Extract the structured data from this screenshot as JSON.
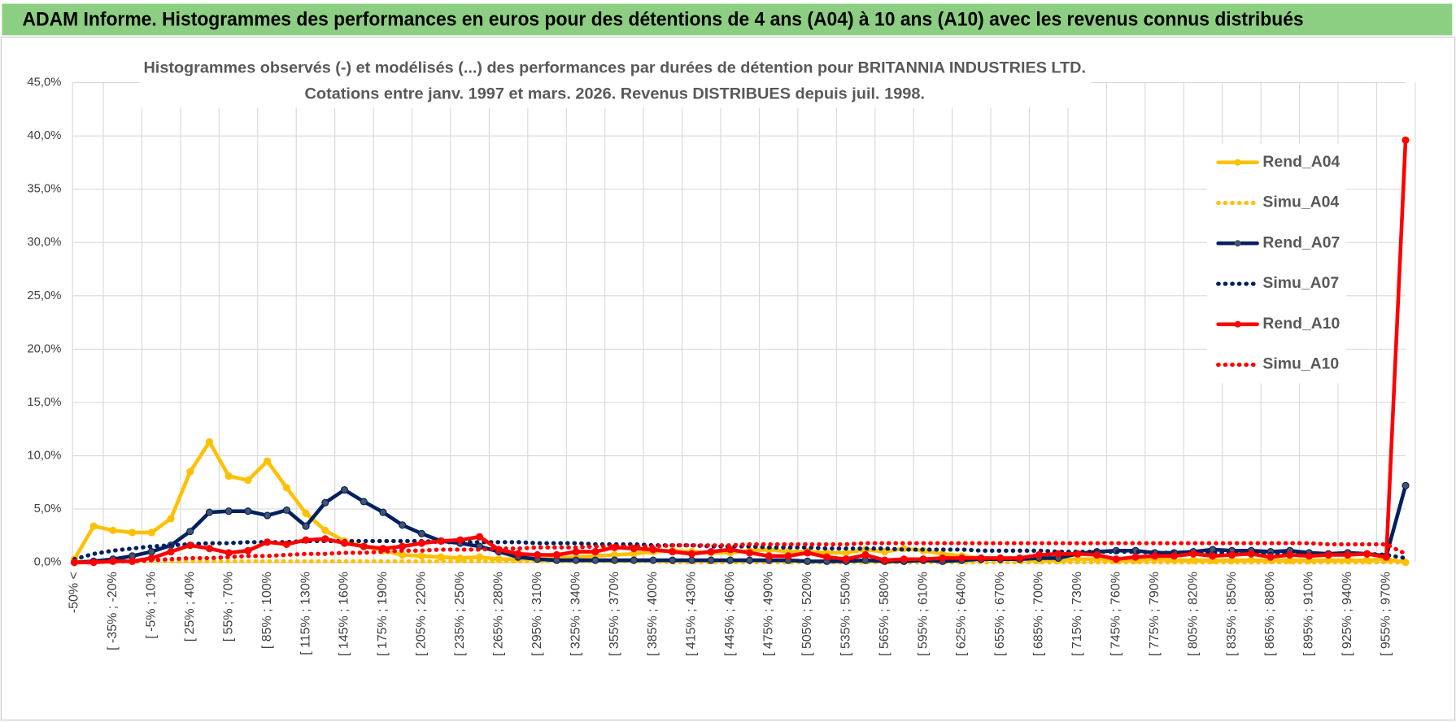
{
  "header": "ADAM Informe. Histogrammes des performances en euros pour des détentions de 4 ans (A04) à 10 ans (A10) avec les revenus connus distribués",
  "chart_data": {
    "type": "line",
    "title": "Histogrammes observés (-) et modélisés (...) des performances par durées de détention pour BRITANNIA  INDUSTRIES LTD.",
    "subtitle": "Cotations entre janv. 1997 et mars. 2026. Revenus DISTRIBUES depuis juil. 1998.",
    "categories": [
      "-50% <",
      null,
      "[ -35% ; -20%",
      null,
      "[ -5% ; 10%",
      null,
      "[ 25% ; 40%",
      null,
      "[ 55% ; 70%",
      null,
      "[ 85% ; 100%",
      null,
      "[ 115% ; 130%",
      null,
      "[ 145% ; 160%",
      null,
      "[ 175% ; 190%",
      null,
      "[ 205% ; 220%",
      null,
      "[ 235% ; 250%",
      null,
      "[ 265% ; 280%",
      null,
      "[ 295% ; 310%",
      null,
      "[ 325% ; 340%",
      null,
      "[ 355% ; 370%",
      null,
      "[ 385% ; 400%",
      null,
      "[ 415% ; 430%",
      null,
      "[ 445% ; 460%",
      null,
      "[ 475% ; 490%",
      null,
      "[ 505% ; 520%",
      null,
      "[ 535% ; 550%",
      null,
      "[ 565% ; 580%",
      null,
      "[ 595% ; 610%",
      null,
      "[ 625% ; 640%",
      null,
      "[ 655% ; 670%",
      null,
      "[ 685% ; 700%",
      null,
      "[ 715% ; 730%",
      null,
      "[ 745% ; 760%",
      null,
      "[ 775% ; 790%",
      null,
      "[ 805% ; 820%",
      null,
      "[ 835% ; 850%",
      null,
      "[ 865% ; 880%",
      null,
      "[ 895% ; 910%",
      null,
      "[ 925% ; 940%",
      null,
      "[ 955% ; 970%",
      null
    ],
    "series": [
      {
        "name": "Rend_A04",
        "color": "#FFC000",
        "dotted": false,
        "values": [
          0.3,
          3.4,
          3.0,
          2.8,
          2.8,
          4.1,
          8.5,
          11.3,
          8.1,
          7.7,
          9.5,
          7.0,
          4.6,
          3.0,
          2.0,
          1.5,
          1.1,
          0.7,
          0.6,
          0.5,
          0.4,
          0.5,
          0.3,
          0.3,
          0.3,
          0.4,
          0.5,
          0.6,
          0.7,
          0.8,
          1.0,
          1.1,
          1.0,
          0.9,
          0.9,
          1.1,
          1.2,
          1.0,
          1.0,
          0.9,
          0.9,
          1.2,
          1.0,
          1.3,
          1.1,
          0.8,
          0.6,
          0.4,
          0.3,
          0.3,
          0.2,
          0.2,
          0.3,
          0.3,
          0.2,
          0.2,
          0.3,
          0.2,
          0.2,
          0.2,
          0.2,
          0.2,
          0.2,
          0.2,
          0.2,
          0.2,
          0.2,
          0.2,
          0.3,
          0.0
        ]
      },
      {
        "name": "Simu_A04",
        "color": "#FFC000",
        "dotted": true,
        "values": [
          0.0,
          0.1,
          0.1,
          0.1,
          0.1,
          0.1,
          0.1,
          0.1,
          0.1,
          0.1,
          0.1,
          0.1,
          0.1,
          0.1,
          0.1,
          0.1,
          0.1,
          0.1,
          0.1,
          0.1,
          0.1,
          0.1,
          0.1,
          0.1,
          0.1,
          0.1,
          0.1,
          0.1,
          0.1,
          0.1,
          0.1,
          0.0,
          0.0,
          0.0,
          0.0,
          0.0,
          0.0,
          0.0,
          0.0,
          0.0,
          0.0,
          0.0,
          0.0,
          0.0,
          0.0,
          0.0,
          0.0,
          0.0,
          0.0,
          0.0,
          0.0,
          0.0,
          0.0,
          0.0,
          0.0,
          0.0,
          0.0,
          0.0,
          0.0,
          0.0,
          0.0,
          0.0,
          0.0,
          0.0,
          0.0,
          0.0,
          0.0,
          0.0,
          0.0,
          0.0
        ]
      },
      {
        "name": "Rend_A07",
        "color": "#002060",
        "dotted": false,
        "values": [
          0.0,
          0.1,
          0.3,
          0.6,
          1.0,
          1.6,
          2.9,
          4.7,
          4.8,
          4.8,
          4.4,
          4.9,
          3.4,
          5.6,
          6.8,
          5.7,
          4.7,
          3.5,
          2.7,
          2.0,
          1.8,
          1.5,
          1.0,
          0.5,
          0.3,
          0.2,
          0.2,
          0.2,
          0.2,
          0.2,
          0.2,
          0.2,
          0.2,
          0.2,
          0.2,
          0.2,
          0.2,
          0.2,
          0.1,
          0.1,
          0.1,
          0.2,
          0.1,
          0.1,
          0.2,
          0.1,
          0.2,
          0.3,
          0.3,
          0.3,
          0.4,
          0.4,
          0.8,
          1.0,
          1.1,
          1.1,
          0.9,
          0.9,
          1.0,
          1.2,
          1.1,
          1.1,
          1.0,
          1.1,
          0.9,
          0.8,
          0.9,
          0.8,
          0.6,
          7.2
        ]
      },
      {
        "name": "Simu_A07",
        "color": "#002060",
        "dotted": true,
        "values": [
          0.3,
          0.8,
          1.1,
          1.3,
          1.5,
          1.6,
          1.7,
          1.8,
          1.8,
          1.9,
          1.9,
          1.9,
          2.0,
          2.0,
          2.0,
          2.0,
          2.0,
          2.0,
          2.0,
          1.9,
          1.9,
          1.9,
          1.9,
          1.9,
          1.8,
          1.8,
          1.8,
          1.7,
          1.7,
          1.7,
          1.6,
          1.6,
          1.6,
          1.5,
          1.5,
          1.5,
          1.4,
          1.4,
          1.4,
          1.3,
          1.3,
          1.3,
          1.3,
          1.2,
          1.2,
          1.2,
          1.2,
          1.1,
          1.1,
          1.1,
          1.1,
          1.0,
          1.0,
          1.0,
          1.0,
          1.0,
          0.9,
          0.9,
          0.9,
          0.9,
          0.9,
          0.9,
          0.8,
          0.8,
          0.8,
          0.8,
          0.8,
          0.8,
          0.7,
          0.4
        ]
      },
      {
        "name": "Rend_A10",
        "color": "#FF0000",
        "dotted": false,
        "values": [
          0.0,
          0.0,
          0.1,
          0.1,
          0.4,
          1.0,
          1.6,
          1.3,
          0.9,
          1.1,
          1.9,
          1.7,
          2.1,
          2.2,
          1.8,
          1.5,
          1.3,
          1.5,
          1.8,
          2.0,
          2.1,
          2.4,
          1.2,
          0.8,
          0.7,
          0.7,
          1.0,
          1.0,
          1.4,
          1.3,
          1.2,
          1.0,
          0.8,
          1.0,
          1.2,
          0.9,
          0.6,
          0.6,
          0.9,
          0.5,
          0.3,
          0.7,
          0.2,
          0.3,
          0.3,
          0.4,
          0.4,
          0.4,
          0.4,
          0.4,
          0.7,
          0.8,
          0.8,
          0.7,
          0.3,
          0.5,
          0.6,
          0.6,
          0.8,
          0.6,
          0.7,
          0.8,
          0.5,
          0.7,
          0.6,
          0.7,
          0.7,
          0.8,
          0.5,
          39.6
        ]
      },
      {
        "name": "Simu_A10",
        "color": "#FF0000",
        "dotted": true,
        "values": [
          0.0,
          0.0,
          0.1,
          0.1,
          0.2,
          0.3,
          0.4,
          0.4,
          0.5,
          0.6,
          0.6,
          0.7,
          0.8,
          0.8,
          0.9,
          0.9,
          1.0,
          1.1,
          1.1,
          1.2,
          1.2,
          1.2,
          1.3,
          1.3,
          1.4,
          1.4,
          1.4,
          1.5,
          1.5,
          1.5,
          1.5,
          1.6,
          1.6,
          1.6,
          1.6,
          1.7,
          1.7,
          1.7,
          1.7,
          1.7,
          1.7,
          1.8,
          1.8,
          1.8,
          1.8,
          1.8,
          1.8,
          1.8,
          1.8,
          1.8,
          1.8,
          1.8,
          1.8,
          1.8,
          1.8,
          1.8,
          1.8,
          1.8,
          1.8,
          1.8,
          1.8,
          1.8,
          1.8,
          1.8,
          1.8,
          1.7,
          1.7,
          1.7,
          1.7,
          0.8
        ]
      }
    ],
    "ylim": [
      0,
      45
    ],
    "yticks": [
      {
        "value": 0,
        "label": "0,0%"
      },
      {
        "value": 5,
        "label": "5,0%"
      },
      {
        "value": 10,
        "label": "10,0%"
      },
      {
        "value": 15,
        "label": "15,0%"
      },
      {
        "value": 20,
        "label": "20,0%"
      },
      {
        "value": 25,
        "label": "25,0%"
      },
      {
        "value": 30,
        "label": "30,0%"
      },
      {
        "value": 35,
        "label": "35,0%"
      },
      {
        "value": 40,
        "label": "40,0%"
      },
      {
        "value": 45,
        "label": "45,0%"
      }
    ],
    "grid": true,
    "legend": "right"
  }
}
